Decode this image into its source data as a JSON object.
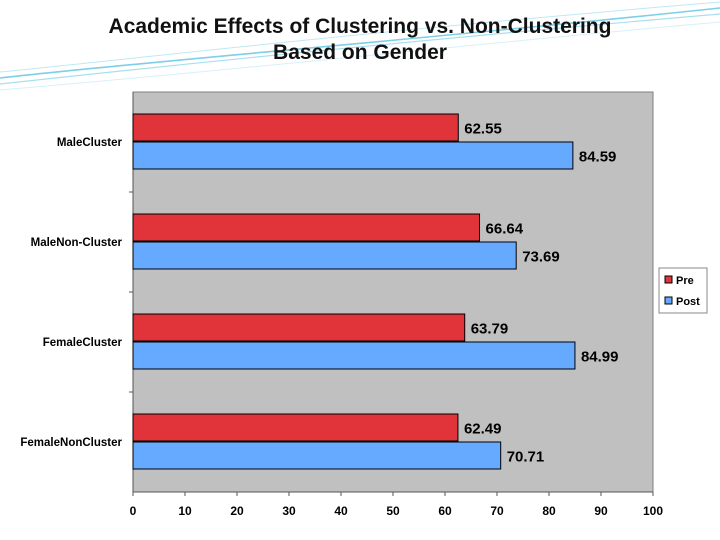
{
  "slide": {
    "title_line1": "Academic Effects of Clustering vs. Non-Clustering",
    "title_line2": "Based on Gender"
  },
  "colors": {
    "pre": "#e0333a",
    "post": "#66aaff",
    "plot_bg": "#c0c0c0",
    "accent": "#7ccfe6"
  },
  "chart_data": {
    "type": "bar",
    "orientation": "horizontal",
    "title": "Academic Effects of Clustering vs. Non-Clustering Based on Gender",
    "categories": [
      "MaleCluster",
      "MaleNon-Cluster",
      "FemaleCluster",
      "FemaleNonCluster"
    ],
    "series": [
      {
        "name": "Pre",
        "values": [
          62.55,
          66.64,
          63.79,
          62.49
        ],
        "labels": [
          "62.55",
          "66.64",
          "63.79",
          "62.49"
        ]
      },
      {
        "name": "Post",
        "values": [
          84.59,
          73.69,
          84.99,
          70.71
        ],
        "labels": [
          "84.59",
          "73.69",
          "84.99",
          "70.71"
        ]
      }
    ],
    "xlim": [
      0,
      100
    ],
    "xticks": [
      0,
      10,
      20,
      30,
      40,
      50,
      60,
      70,
      80,
      90,
      100
    ],
    "grid": false,
    "legend_position": "right"
  }
}
